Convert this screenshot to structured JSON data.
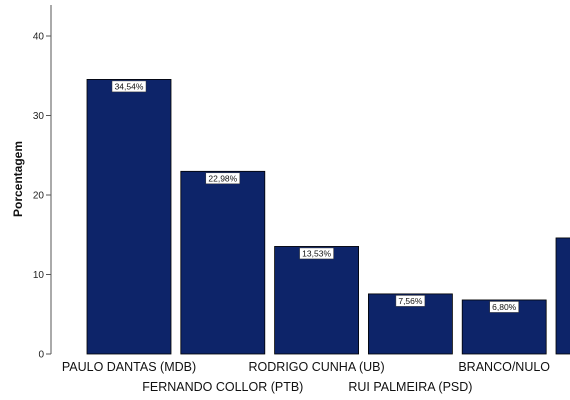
{
  "chart_data": {
    "type": "bar",
    "ylabel": "Porcentagem",
    "ylim": [
      0,
      44
    ],
    "yticks": [
      0,
      10,
      20,
      30,
      40
    ],
    "grid": false,
    "bar_color": "#0d2469",
    "categories": [
      "PAULO DANTAS (MDB)",
      "FERNANDO COLLOR (PTB)",
      "RODRIGO CUNHA (UB)",
      "RUI PALMEIRA (PSD)",
      "BRANCO/NULO",
      ""
    ],
    "values": [
      34.54,
      22.98,
      13.53,
      7.56,
      6.8,
      14.6
    ],
    "data_labels": [
      "34,54%",
      "22,98%",
      "13,53%",
      "7,56%",
      "6,80%",
      ""
    ]
  }
}
